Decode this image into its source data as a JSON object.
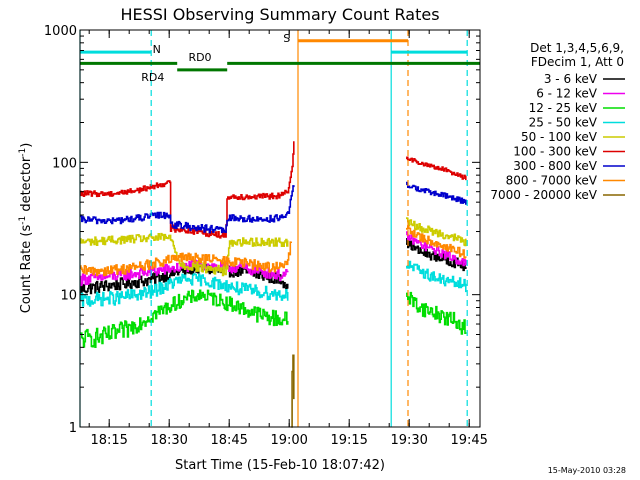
{
  "chart_data": {
    "type": "line",
    "title": "HESSI Observing Summary Count Rates",
    "xlabel": "Start Time (15-Feb-10 18:07:42)",
    "ylabel_main": "Count Rate (s",
    "ylabel_sup1": "-1",
    "ylabel_mid": " detector",
    "ylabel_sup2": "-1",
    "ylabel_end": ")",
    "y_scale": "log",
    "ylim": [
      1,
      1000
    ],
    "xlim_minutes": [
      0,
      100
    ],
    "y_ticks": [
      "1",
      "10",
      "100",
      "1000"
    ],
    "x_ticks": [
      {
        "label": "18:15",
        "min": 7.3
      },
      {
        "label": "18:30",
        "min": 22.3
      },
      {
        "label": "18:45",
        "min": 37.3
      },
      {
        "label": "19:00",
        "min": 52.3
      },
      {
        "label": "19:15",
        "min": 67.3
      },
      {
        "label": "19:30",
        "min": 82.3
      },
      {
        "label": "19:45",
        "min": 97.3
      }
    ],
    "legend_placement": "right",
    "legend_header": [
      "Det 1,3,4,5,6,9,",
      "FDecim 1, Att 0"
    ],
    "series": [
      {
        "name": "3 - 6 keV",
        "color": "#000000",
        "segments": [
          {
            "x": [
              0,
              10,
              18,
              25,
              30,
              35,
              40,
              45,
              50,
              52
            ],
            "y": [
              11,
              12,
              13,
              15,
              16,
              15,
              15,
              14,
              13,
              12
            ]
          },
          {
            "x": [
              81.5,
              85,
              90,
              95,
              96.5
            ],
            "y": [
              25,
              21,
              19,
              17,
              16
            ]
          }
        ]
      },
      {
        "name": "6 - 12 keV",
        "color": "#ee00ee",
        "segments": [
          {
            "x": [
              0,
              10,
              18,
              25,
              30,
              35,
              40,
              45,
              50,
              52
            ],
            "y": [
              13,
              14,
              15,
              16,
              17,
              16,
              16,
              15,
              14,
              14
            ]
          },
          {
            "x": [
              81.5,
              85,
              90,
              95,
              96.5
            ],
            "y": [
              28,
              24,
              21,
              18,
              17
            ]
          }
        ]
      },
      {
        "name": "12 - 25 keV",
        "color": "#00dd00",
        "segments": [
          {
            "x": [
              0,
              6,
              12,
              18,
              25,
              30,
              35,
              40,
              45,
              50,
              52
            ],
            "y": [
              4.6,
              4.8,
              5.5,
              7,
              9,
              10,
              9,
              8,
              7,
              6.5,
              6.5
            ]
          },
          {
            "x": [
              81.5,
              85,
              90,
              95,
              96.5
            ],
            "y": [
              10,
              8,
              7,
              6,
              5.5
            ]
          }
        ]
      },
      {
        "name": "25 - 50 keV",
        "color": "#00dddd",
        "segments": [
          {
            "x": [
              0,
              10,
              18,
              25,
              30,
              35,
              40,
              45,
              50,
              52
            ],
            "y": [
              9,
              9.5,
              10.5,
              13,
              13,
              12,
              11,
              10.5,
              10,
              10
            ]
          },
          {
            "x": [
              81.5,
              85,
              90,
              95,
              96.5
            ],
            "y": [
              17,
              15,
              13,
              12,
              11.5
            ]
          }
        ]
      },
      {
        "name": "50 - 100 keV",
        "color": "#cccc00",
        "segments": [
          {
            "x": [
              0,
              10,
              20,
              22.5,
              25,
              30,
              36.5,
              37.5,
              45,
              52
            ],
            "y": [
              25,
              26,
              27,
              27,
              17,
              16,
              15,
              25,
              25,
              25
            ]
          },
          {
            "x": [
              81.5,
              85,
              90,
              95,
              96.5
            ],
            "y": [
              36,
              32,
              29,
              26,
              25
            ]
          }
        ]
      },
      {
        "name": "100 - 300 keV",
        "color": "#dd0000",
        "segments": [
          {
            "x": [
              0,
              8,
              15,
              20,
              22.5,
              22.6,
              30,
              36.5,
              36.6,
              45,
              50,
              52,
              53,
              53.6
            ],
            "y": [
              58,
              58,
              62,
              68,
              70,
              32,
              30,
              28,
              55,
              55,
              56,
              60,
              90,
              170
            ]
          },
          {
            "x": [
              81.5,
              85,
              90,
              95,
              96.5
            ],
            "y": [
              110,
              98,
              90,
              80,
              75
            ]
          }
        ]
      },
      {
        "name": "300 - 800 keV",
        "color": "#0000cc",
        "segments": [
          {
            "x": [
              0,
              8,
              15,
              20,
              22.5,
              22.6,
              30,
              36.5,
              36.6,
              45,
              50,
              52,
              53,
              53.6
            ],
            "y": [
              37,
              36,
              38,
              40,
              40,
              34,
              32,
              30,
              38,
              37,
              38,
              40,
              60,
              70
            ]
          },
          {
            "x": [
              81.5,
              85,
              90,
              95,
              96.5
            ],
            "y": [
              68,
              62,
              57,
              52,
              50
            ]
          }
        ]
      },
      {
        "name": "800 - 7000 keV",
        "color": "#ff8800",
        "segments": [
          {
            "x": [
              0,
              10,
              18,
              25,
              30,
              35,
              40,
              45,
              50,
              52,
              53
            ],
            "y": [
              15,
              15.5,
              17,
              19,
              19,
              18,
              17.5,
              16.5,
              16,
              18,
              28
            ]
          },
          {
            "x": [
              81.5,
              85,
              90,
              95,
              96.5
            ],
            "y": [
              32,
              27,
              24,
              21,
              20
            ]
          }
        ]
      },
      {
        "name": "7000 - 20000 keV",
        "color": "#886600",
        "segments": [
          {
            "x": [
              52.8,
              53,
              53.2,
              53.4,
              53.6
            ],
            "y": [
              1,
              2.5,
              4,
              2,
              1
            ]
          }
        ]
      }
    ],
    "annotations": {
      "vlines": [
        {
          "min": 0,
          "color": "#00dddd",
          "style": "solid"
        },
        {
          "min": 17.8,
          "color": "#00dddd",
          "style": "dashed"
        },
        {
          "min": 54.5,
          "color": "#ff8800",
          "style": "solid"
        },
        {
          "min": 77.8,
          "color": "#00dddd",
          "style": "solid"
        },
        {
          "min": 82,
          "color": "#ff8800",
          "style": "dashed"
        },
        {
          "min": 96.8,
          "color": "#00dddd",
          "style": "dashed"
        }
      ],
      "bars": [
        {
          "label": "N",
          "color": "#00dddd",
          "x0": 0,
          "x1": 17.8,
          "y": 680,
          "label_min": 19.2,
          "label_y": 720
        },
        {
          "label": "",
          "color": "#00dddd",
          "x0": 77.8,
          "x1": 96.8,
          "y": 680
        },
        {
          "label": "S",
          "color": "#ff8800",
          "x0": 54.5,
          "x1": 82,
          "y": 830,
          "label_min": 51.7,
          "label_y": 870
        },
        {
          "label": "RD0",
          "color": "#007700",
          "x0": 0,
          "x1": 24.3,
          "y": 560,
          "label_min": 30,
          "label_y": 625
        },
        {
          "label": "",
          "color": "#007700",
          "x0": 36.8,
          "x1": 100,
          "y": 560
        },
        {
          "label": "RD4",
          "color": "#007700",
          "x0": 24.3,
          "x1": 36.8,
          "y": 500,
          "label_min": 18.2,
          "label_y": 440
        }
      ]
    }
  },
  "footer": {
    "date_stamp": "15-May-2010 03:28"
  }
}
